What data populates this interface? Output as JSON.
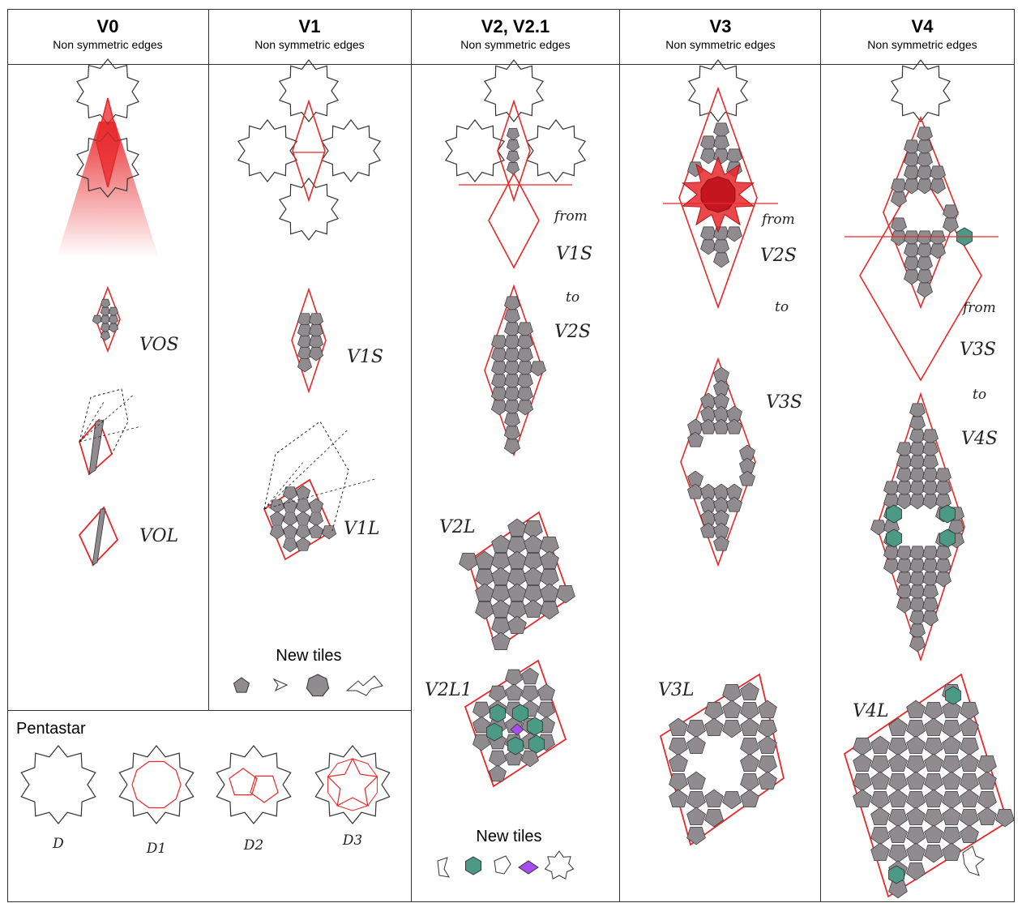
{
  "columns": [
    {
      "title": "V0",
      "subtitle": "Non symmetric edges"
    },
    {
      "title": "V1",
      "subtitle": "Non symmetric edges"
    },
    {
      "title": "V2, V2.1",
      "subtitle": "Non symmetric edges"
    },
    {
      "title": "V3",
      "subtitle": "Non symmetric edges"
    },
    {
      "title": "V4",
      "subtitle": "Non symmetric edges"
    }
  ],
  "labels": {
    "v0s": "VOS",
    "v0l": "VOL",
    "v1s": "V1S",
    "v1l": "V1L",
    "v2l": "V2L",
    "v2l1": "V2L1",
    "v3s": "V3S",
    "v3l": "V3L",
    "v4l": "V4L"
  },
  "notes": {
    "from1": "from",
    "from1_src": "V1S",
    "to1": "to",
    "to1_dst": "V2S",
    "from2": "from",
    "from2_src": "V2S",
    "to2": "to",
    "from3": "from",
    "from3_src": "V3S",
    "to3": "to",
    "to3_dst": "V4S"
  },
  "new_tiles_label": "New tiles",
  "pentastar": {
    "title": "Pentastar",
    "items": [
      "D",
      "D1",
      "D2",
      "D3"
    ]
  },
  "colors": {
    "red": "#e8282b",
    "gray": "#8f8b8f",
    "teal": "#4a9a86",
    "purple": "#a64df0",
    "outline": "#333333"
  }
}
